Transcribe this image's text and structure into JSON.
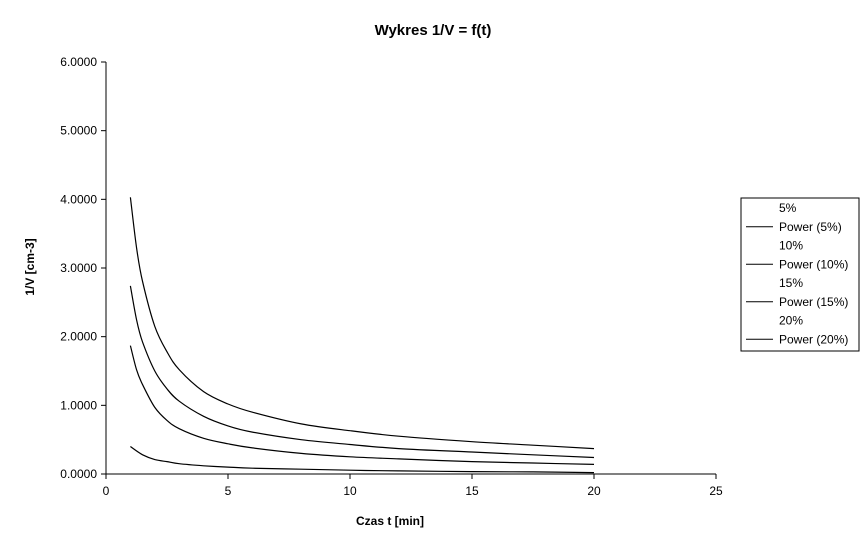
{
  "chart_data": {
    "type": "line",
    "title": "Wykres 1/V = f(t)",
    "xlabel": "Czas t [min]",
    "ylabel": "1/V [cm-3]",
    "xlim": [
      0,
      25
    ],
    "ylim": [
      0,
      6
    ],
    "xticks": [
      "0",
      "5",
      "10",
      "15",
      "20",
      "25"
    ],
    "yticks": [
      "0.0000",
      "1.0000",
      "2.0000",
      "3.0000",
      "4.0000",
      "5.0000",
      "6.0000"
    ],
    "grid": false,
    "legend_position": "right",
    "legend": [
      "5%",
      "Power (5%)",
      "10%",
      "Power (10%)",
      "15%",
      "Power (15%)",
      "20%",
      "Power (20%)"
    ],
    "series": [
      {
        "name": "Power (5%)",
        "color": "#000000",
        "x": [
          1,
          1.25,
          1.5,
          2,
          2.5,
          3,
          4,
          5,
          6,
          8,
          10,
          12,
          15,
          17.5,
          20
        ],
        "y": [
          4.03,
          3.3,
          2.8,
          2.15,
          1.78,
          1.52,
          1.2,
          1.02,
          0.9,
          0.73,
          0.63,
          0.55,
          0.47,
          0.42,
          0.37
        ]
      },
      {
        "name": "Power (10%)",
        "color": "#000000",
        "x": [
          1,
          1.25,
          1.5,
          2,
          2.5,
          3,
          4,
          5,
          6,
          8,
          10,
          12,
          15,
          17.5,
          20
        ],
        "y": [
          2.74,
          2.25,
          1.92,
          1.5,
          1.24,
          1.06,
          0.84,
          0.7,
          0.61,
          0.5,
          0.43,
          0.37,
          0.32,
          0.28,
          0.24
        ]
      },
      {
        "name": "Power (15%)",
        "color": "#000000",
        "x": [
          1,
          1.25,
          1.5,
          2,
          2.5,
          3,
          4,
          5,
          6,
          8,
          10,
          12,
          15,
          17.5,
          20
        ],
        "y": [
          1.87,
          1.52,
          1.3,
          0.97,
          0.78,
          0.66,
          0.52,
          0.44,
          0.38,
          0.3,
          0.25,
          0.22,
          0.18,
          0.16,
          0.14
        ]
      },
      {
        "name": "Power (20%)",
        "color": "#000000",
        "x": [
          1,
          1.5,
          2,
          2.5,
          3,
          4,
          5,
          6,
          8,
          10,
          12,
          15,
          17.5,
          20
        ],
        "y": [
          0.4,
          0.28,
          0.21,
          0.18,
          0.15,
          0.12,
          0.1,
          0.085,
          0.07,
          0.055,
          0.045,
          0.035,
          0.03,
          0.02
        ]
      }
    ]
  }
}
